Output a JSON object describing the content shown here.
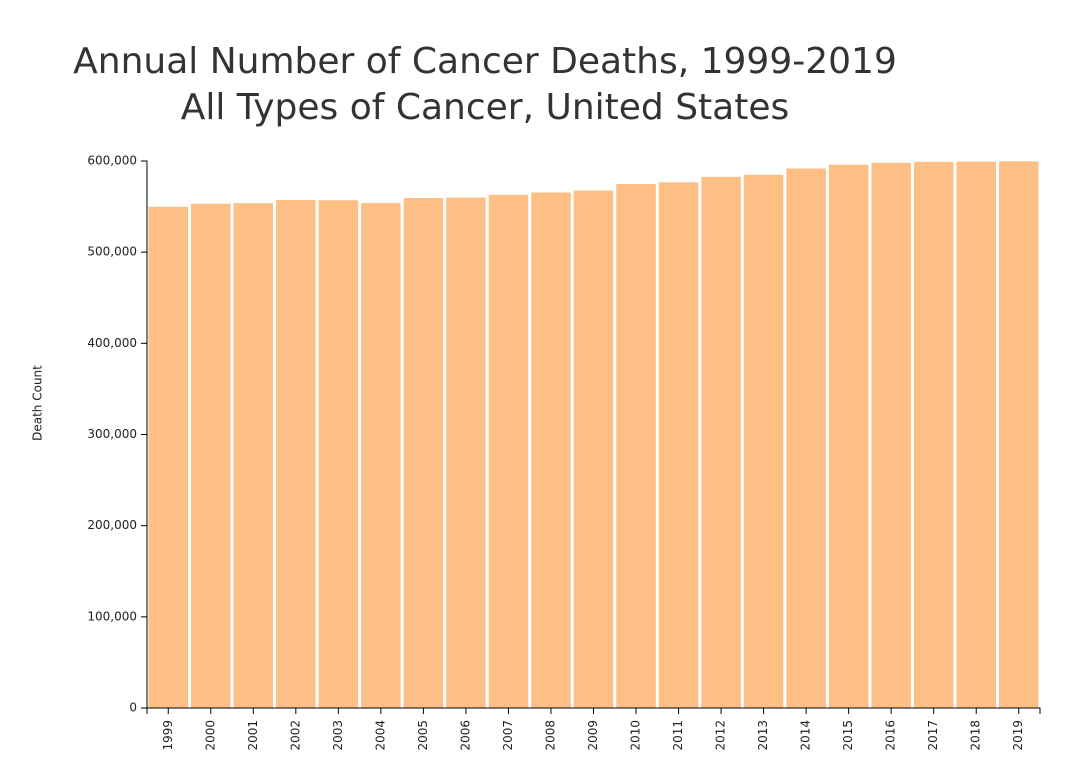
{
  "chart_data": {
    "type": "bar",
    "title": "Annual Number of Cancer Deaths, 1999-2019",
    "subtitle": "All Types of Cancer, United States",
    "y_label": "Death Count",
    "categories": [
      "1999",
      "2000",
      "2001",
      "2002",
      "2003",
      "2004",
      "2005",
      "2006",
      "2007",
      "2008",
      "2009",
      "2010",
      "2011",
      "2012",
      "2013",
      "2014",
      "2015",
      "2016",
      "2017",
      "2018",
      "2019"
    ],
    "values": [
      549838,
      553091,
      553768,
      557271,
      556902,
      553888,
      559312,
      559888,
      562875,
      565469,
      567628,
      574743,
      576691,
      582623,
      584881,
      591700,
      595930,
      598038,
      599108,
      599274,
      599601
    ],
    "color": "#fdbf84",
    "ylim": [
      0,
      600000
    ],
    "yticks": [
      0,
      {
        "value": 100000,
        "label": "100,000"
      },
      {
        "value": 200000,
        "label": "200,000"
      },
      {
        "value": 300000,
        "label": "300,000"
      },
      {
        "value": 400000,
        "label": "400,000"
      },
      {
        "value": 500000,
        "label": "500,000"
      },
      {
        "value": 600000,
        "label": "600,000"
      }
    ],
    "grid": false
  }
}
